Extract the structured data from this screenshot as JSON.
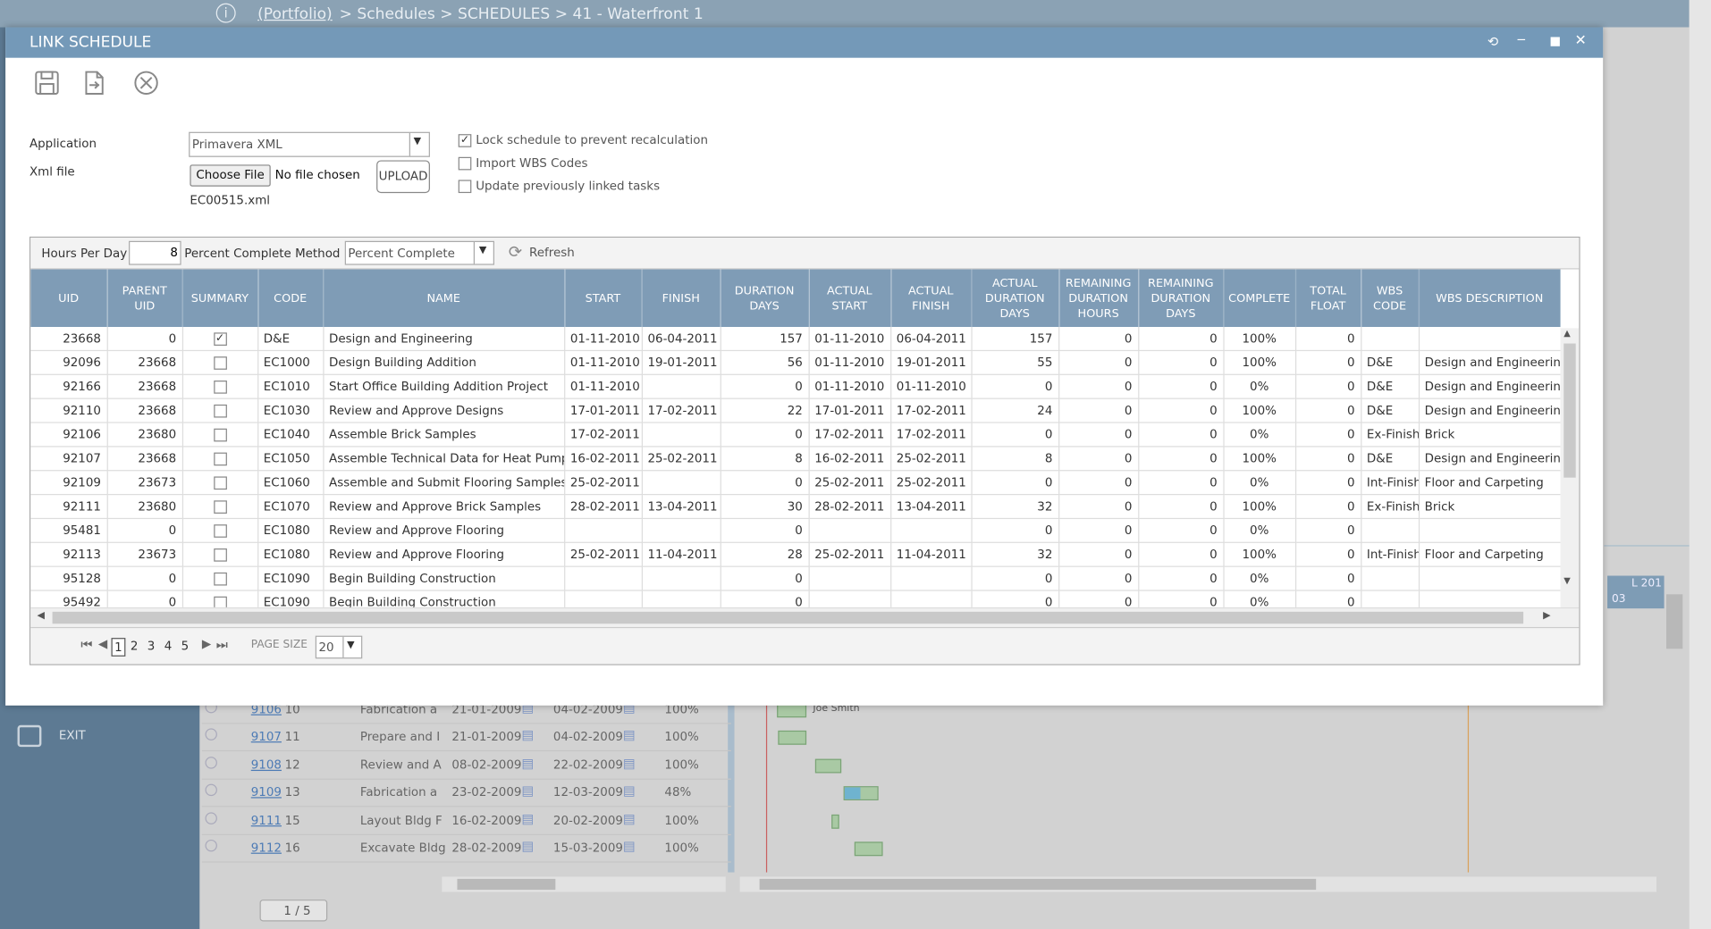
{
  "header": {
    "breadcrumb_link": "(Portfolio)",
    "breadcrumb_rest": "> Schedules > SCHEDULES > 41 - Waterfront 1"
  },
  "sidebar": {
    "exit": "EXIT"
  },
  "background_grid": {
    "rows": [
      [
        "9106",
        "10",
        "Fabrication a",
        "21-01-2009",
        "04-02-2009",
        "100%"
      ],
      [
        "9107",
        "11",
        "Prepare and I",
        "21-01-2009",
        "04-02-2009",
        "100%"
      ],
      [
        "9108",
        "12",
        "Review and A",
        "08-02-2009",
        "22-02-2009",
        "100%"
      ],
      [
        "9109",
        "13",
        "Fabrication a",
        "23-02-2009",
        "12-03-2009",
        "48%"
      ],
      [
        "9111",
        "15",
        "Layout Bldg F",
        "16-02-2009",
        "20-02-2009",
        "100%"
      ],
      [
        "9112",
        "16",
        "Excavate Bldg",
        "28-02-2009",
        "15-03-2009",
        "100%"
      ]
    ],
    "gantt_label": "Joe Smith",
    "pager": "1 / 5",
    "timeline_label": "L 201",
    "timeline_sub": "03"
  },
  "dialog": {
    "title": "LINK SCHEDULE",
    "application_label": "Application",
    "application_value": "Primavera XML",
    "xml_label": "Xml file",
    "choose_file": "Choose File",
    "no_file": "No file chosen",
    "upload": "UPLOAD",
    "file_name": "EC00515.xml",
    "options": [
      {
        "label": "Lock schedule to prevent recalculation",
        "checked": true
      },
      {
        "label": "Import WBS Codes",
        "checked": false
      },
      {
        "label": "Update previously linked tasks",
        "checked": false
      }
    ]
  },
  "grid": {
    "hours_label": "Hours Per Day",
    "hours_value": 8,
    "method_label": "Percent Complete Method",
    "method_value": "Percent Complete",
    "refresh": "Refresh",
    "columns": [
      "UID",
      "PARENT UID",
      "SUMMARY",
      "CODE",
      "NAME",
      "START",
      "FINISH",
      "DURATION DAYS",
      "ACTUAL START",
      "ACTUAL FINISH",
      "ACTUAL DURATION DAYS",
      "REMAINING DURATION HOURS",
      "REMAINING DURATION DAYS",
      "COMPLETE",
      "TOTAL FLOAT",
      "WBS CODE",
      "WBS DESCRIPTION"
    ],
    "rows": [
      [
        23668,
        0,
        true,
        "D&E",
        "Design and Engineering",
        "01-11-2010",
        "06-04-2011",
        157,
        "01-11-2010",
        "06-04-2011",
        157,
        0,
        0,
        "100%",
        0,
        null,
        null
      ],
      [
        92096,
        23668,
        false,
        "EC1000",
        "Design Building Addition",
        "01-11-2010",
        "19-01-2011",
        56,
        "01-11-2010",
        "19-01-2011",
        55,
        0,
        0,
        "100%",
        0,
        "D&E",
        "Design and Engineering"
      ],
      [
        92166,
        23668,
        false,
        "EC1010",
        "Start Office Building Addition Project",
        "01-11-2010",
        null,
        0,
        "01-11-2010",
        "01-11-2010",
        0,
        0,
        0,
        "0%",
        0,
        "D&E",
        "Design and Engineering"
      ],
      [
        92110,
        23668,
        false,
        "EC1030",
        "Review and Approve Designs",
        "17-01-2011",
        "17-02-2011",
        22,
        "17-01-2011",
        "17-02-2011",
        24,
        0,
        0,
        "100%",
        0,
        "D&E",
        "Design and Engineering"
      ],
      [
        92106,
        23680,
        false,
        "EC1040",
        "Assemble Brick Samples",
        "17-02-2011",
        null,
        0,
        "17-02-2011",
        "17-02-2011",
        0,
        0,
        0,
        "0%",
        0,
        "Ex-Finish",
        "Brick"
      ],
      [
        92107,
        23668,
        false,
        "EC1050",
        "Assemble Technical Data for Heat Pump",
        "16-02-2011",
        "25-02-2011",
        8,
        "16-02-2011",
        "25-02-2011",
        8,
        0,
        0,
        "100%",
        0,
        "D&E",
        "Design and Engineering"
      ],
      [
        92109,
        23673,
        false,
        "EC1060",
        "Assemble and Submit Flooring Samples",
        "25-02-2011",
        null,
        0,
        "25-02-2011",
        "25-02-2011",
        0,
        0,
        0,
        "0%",
        0,
        "Int-Finish",
        "Floor and Carpeting"
      ],
      [
        92111,
        23680,
        false,
        "EC1070",
        "Review and Approve Brick Samples",
        "28-02-2011",
        "13-04-2011",
        30,
        "28-02-2011",
        "13-04-2011",
        32,
        0,
        0,
        "100%",
        0,
        "Ex-Finish",
        "Brick"
      ],
      [
        95481,
        0,
        false,
        "EC1080",
        "Review and Approve Flooring",
        null,
        null,
        0,
        null,
        null,
        0,
        0,
        0,
        "0%",
        0,
        null,
        null
      ],
      [
        92113,
        23673,
        false,
        "EC1080",
        "Review and Approve Flooring",
        "25-02-2011",
        "11-04-2011",
        28,
        "25-02-2011",
        "11-04-2011",
        32,
        0,
        0,
        "100%",
        0,
        "Int-Finish",
        "Floor and Carpeting"
      ],
      [
        95128,
        0,
        false,
        "EC1090",
        "Begin Building Construction",
        null,
        null,
        0,
        null,
        null,
        0,
        0,
        0,
        "0%",
        0,
        null,
        null
      ],
      [
        95492,
        0,
        false,
        "EC1090",
        "Begin Building Construction",
        null,
        null,
        0,
        null,
        null,
        0,
        0,
        0,
        "0%",
        0,
        null,
        null
      ]
    ],
    "pages": [
      1,
      2,
      3,
      4,
      5
    ],
    "current_page": 1,
    "page_size_label": "PAGE SIZE",
    "page_size": 20
  }
}
